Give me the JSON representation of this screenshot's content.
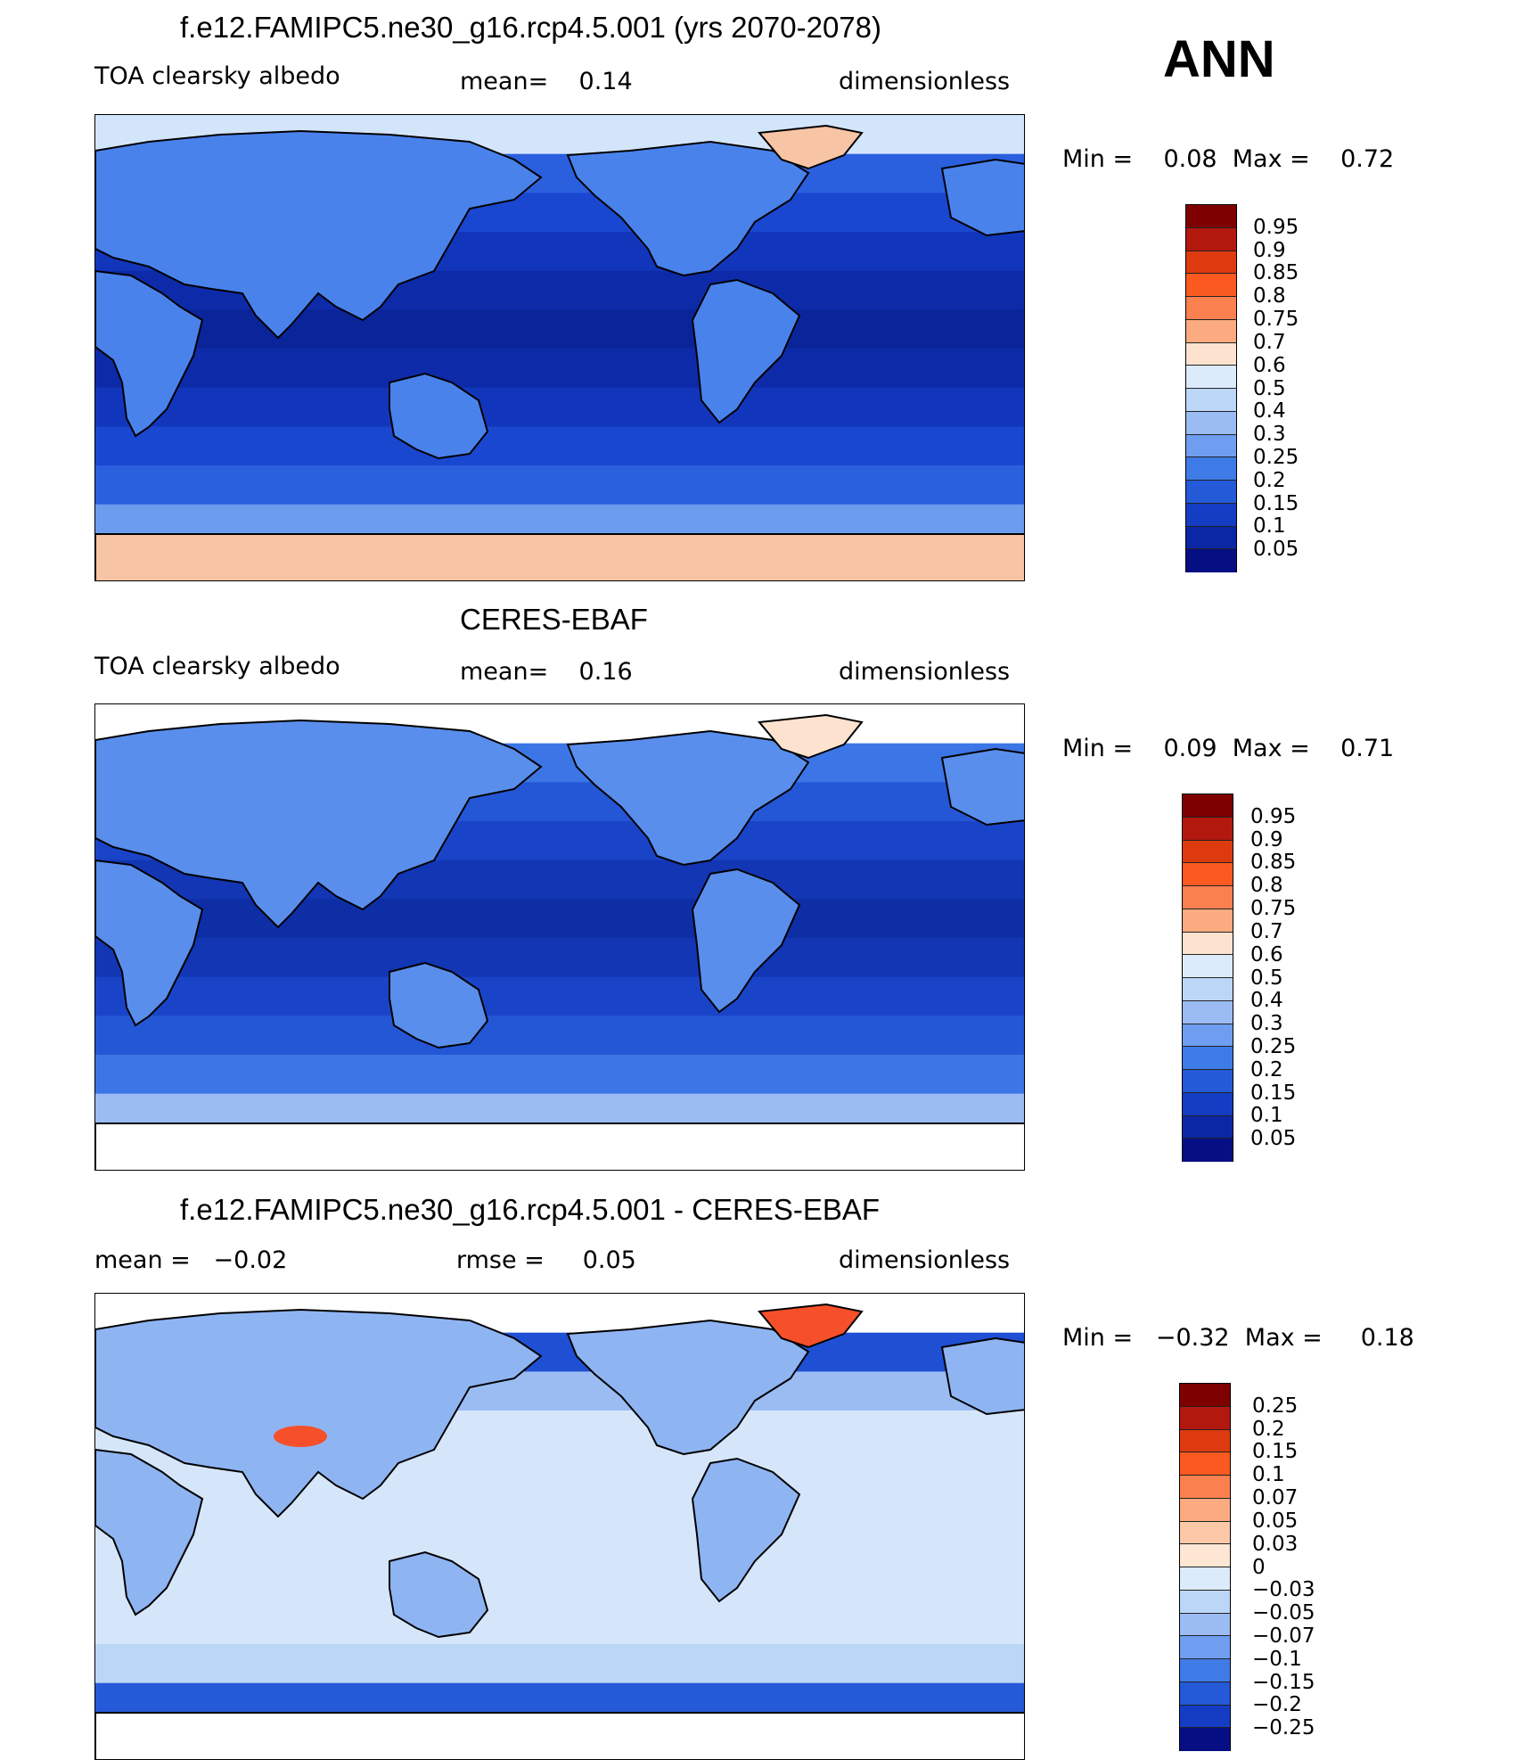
{
  "season": "ANN",
  "panels": [
    {
      "title": "f.e12.FAMIPC5.ne30_g16.rcp4.5.001 (yrs 2070-2078)",
      "left_label": "TOA clearsky albedo",
      "center_label": "mean=    0.14",
      "right_label": "dimensionless",
      "minmax": "Min =    0.08  Max =    0.72",
      "colorbar": {
        "colors": [
          "#7f0000",
          "#b2180e",
          "#dd3b0f",
          "#fa5a20",
          "#fb8050",
          "#fcab80",
          "#fde3cf",
          "#dcebfb",
          "#bcd6f8",
          "#9bbcf3",
          "#6f9ef0",
          "#3f7be6",
          "#2459d8",
          "#143dc4",
          "#0b27a6",
          "#050f83"
        ],
        "ticks": [
          "0.95",
          "0.9",
          "0.85",
          "0.8",
          "0.75",
          "0.7",
          "0.6",
          "0.5",
          "0.4",
          "0.3",
          "0.25",
          "0.2",
          "0.15",
          "0.1",
          "0.05"
        ]
      },
      "map": {
        "ocean_bands": [
          "#d3e5fb",
          "#2a5fde",
          "#1a47cf",
          "#1236bb",
          "#0d2ba9",
          "#0a259a",
          "#0d2ba9",
          "#1236bb",
          "#1a47cf",
          "#2a5fde",
          "#6b9cee",
          "#f5b89a"
        ],
        "land_color": "#4a82ec",
        "highlight_color": "#f7c4a6"
      }
    },
    {
      "title": "CERES-EBAF",
      "left_label": "TOA clearsky albedo",
      "center_label": "mean=    0.16",
      "right_label": "dimensionless",
      "minmax": "Min =    0.09  Max =    0.71",
      "colorbar": {
        "colors": [
          "#7f0000",
          "#b2180e",
          "#dd3b0f",
          "#fa5a20",
          "#fb8050",
          "#fcab80",
          "#fde3cf",
          "#dcebfb",
          "#bcd6f8",
          "#9bbcf3",
          "#6f9ef0",
          "#3f7be6",
          "#2459d8",
          "#143dc4",
          "#0b27a6",
          "#050f83"
        ],
        "ticks": [
          "0.95",
          "0.9",
          "0.85",
          "0.8",
          "0.75",
          "0.7",
          "0.6",
          "0.5",
          "0.4",
          "0.3",
          "0.25",
          "0.2",
          "0.15",
          "0.1",
          "0.05"
        ]
      },
      "map": {
        "ocean_bands": [
          "#ffffff",
          "#3c76e6",
          "#2457d6",
          "#1a44c8",
          "#1236b4",
          "#0e2ea6",
          "#1236b4",
          "#1a44c8",
          "#2457d6",
          "#3c76e6",
          "#9bbcf3",
          "#ffffff"
        ],
        "land_color": "#5a8eec",
        "highlight_color": "#fde3cf"
      }
    },
    {
      "title": "f.e12.FAMIPC5.ne30_g16.rcp4.5.001 - CERES-EBAF",
      "left_label": "mean =   −0.02",
      "center_label": "rmse =     0.05",
      "right_label": "dimensionless",
      "minmax": "Min =   −0.32  Max =     0.18",
      "colorbar": {
        "colors": [
          "#7f0000",
          "#b2180e",
          "#dd3b0f",
          "#fa5a20",
          "#fb8050",
          "#fcab80",
          "#fdc8a8",
          "#fde6d4",
          "#dcebfb",
          "#bcd6f8",
          "#9bbcf3",
          "#6f9ef0",
          "#3f7be6",
          "#2459d8",
          "#143dc4",
          "#050f83"
        ],
        "ticks": [
          "0.25",
          "0.2",
          "0.15",
          "0.1",
          "0.07",
          "0.05",
          "0.03",
          "0",
          "−0.03",
          "−0.05",
          "−0.07",
          "−0.1",
          "−0.15",
          "−0.2",
          "−0.25"
        ]
      },
      "map": {
        "ocean_bands": [
          "#ffffff",
          "#1f4fd3",
          "#9bbcf3",
          "#d6e6fa",
          "#d6e6fa",
          "#d6e6fa",
          "#d6e6fa",
          "#d6e6fa",
          "#d6e6fa",
          "#bcd6f8",
          "#2459d8",
          "#ffffff"
        ],
        "land_color": "#8fb4f2",
        "highlight_color": "#f6502a"
      }
    }
  ]
}
